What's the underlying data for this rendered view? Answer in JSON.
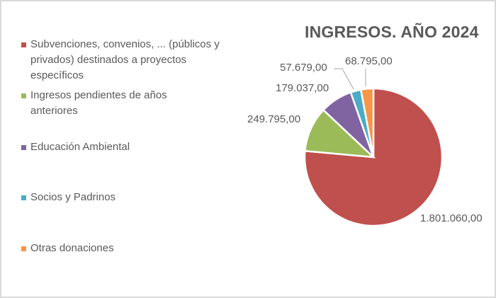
{
  "chart_data": {
    "type": "pie",
    "title": "INGRESOS. AÑO 2024",
    "categories": [
      "Subvenciones, convenios, ... (públicos y privados) destinados a proyectos específicos",
      "Ingresos pendientes de años anteriores",
      "Educación Ambiental",
      "Socios y Padrinos",
      "Otras donaciones"
    ],
    "values": [
      1801060.0,
      249795.0,
      179037.0,
      57679.0,
      68795.0
    ],
    "data_labels": [
      "1.801.060,00",
      "249.795,00",
      "179.037,00",
      "57.679,00",
      "68.795,00"
    ],
    "colors": [
      "#c0504d",
      "#9bbb59",
      "#8064a2",
      "#4bacc6",
      "#f79646"
    ],
    "legend_position": "left"
  },
  "legend": {
    "items": [
      {
        "label": "Subvenciones, convenios, ... (públicos y privados) destinados a proyectos específicos",
        "color": "#c0504d"
      },
      {
        "label": "Ingresos pendientes de años anteriores",
        "color": "#9bbb59"
      },
      {
        "label": "Educación Ambiental",
        "color": "#8064a2"
      },
      {
        "label": "Socios y Padrinos",
        "color": "#4bacc6"
      },
      {
        "label": "Otras donaciones",
        "color": "#f79646"
      }
    ]
  }
}
